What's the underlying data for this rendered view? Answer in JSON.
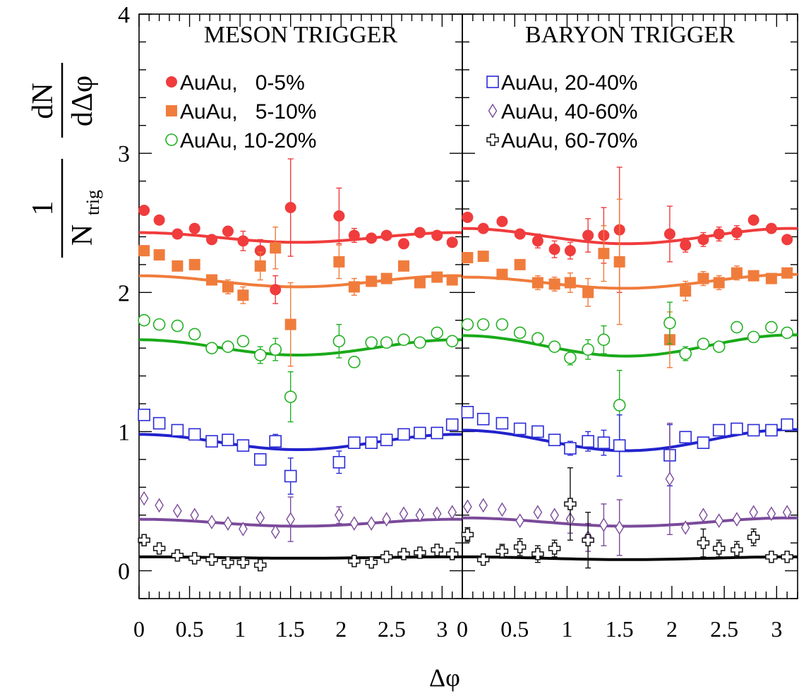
{
  "chart_data": {
    "type": "scatter",
    "xlabel": "Δφ",
    "ylabel_num": "dN",
    "ylabel_den": "dΔφ",
    "ylabel_prefix": "1",
    "ylabel_ntrig": "N",
    "ylabel_ntrig_sub": "trig",
    "xlim": [
      0,
      3.2
    ],
    "ylim": [
      -0.2,
      4
    ],
    "xticks": [
      "0",
      "0.5",
      "1",
      "1.5",
      "2",
      "2.5",
      "3"
    ],
    "yticks": [
      "0",
      "1",
      "2",
      "3",
      "4"
    ],
    "panels": [
      {
        "title": "MESON TRIGGER",
        "series": [
          {
            "name": "AuAu,   0-5%",
            "marker": "filled-circle",
            "color": "#f03c3c",
            "x": [
              0.05,
              0.2,
              0.38,
              0.55,
              0.72,
              0.88,
              1.03,
              1.2,
              1.35,
              1.5,
              1.98,
              2.13,
              2.3,
              2.45,
              2.62,
              2.78,
              2.95,
              3.1
            ],
            "y": [
              2.59,
              2.52,
              2.42,
              2.46,
              2.38,
              2.44,
              2.37,
              2.3,
              2.02,
              2.61,
              2.55,
              2.41,
              2.39,
              2.41,
              2.35,
              2.43,
              2.41,
              2.36
            ],
            "err": [
              0,
              0,
              0,
              0,
              0,
              0,
              0.07,
              0.08,
              0.1,
              0.35,
              0.2,
              0.05,
              0,
              0,
              0,
              0,
              0,
              0
            ],
            "fit": [
              2.43,
              2.36,
              2.39,
              2.43
            ]
          },
          {
            "name": "AuAu,   5-10%",
            "marker": "filled-square",
            "color": "#f07c3c",
            "x": [
              0.05,
              0.2,
              0.38,
              0.55,
              0.72,
              0.88,
              1.03,
              1.2,
              1.35,
              1.5,
              1.98,
              2.13,
              2.3,
              2.45,
              2.62,
              2.78,
              2.95,
              3.1
            ],
            "y": [
              2.3,
              2.27,
              2.19,
              2.2,
              2.09,
              2.04,
              1.98,
              2.19,
              2.32,
              1.77,
              2.22,
              2.04,
              2.08,
              2.1,
              2.19,
              2.07,
              2.11,
              2.09
            ],
            "err": [
              0,
              0,
              0,
              0,
              0,
              0.05,
              0.06,
              0.1,
              0.15,
              0.3,
              0.12,
              0.06,
              0,
              0,
              0,
              0,
              0,
              0
            ],
            "fit": [
              2.12,
              2.04,
              2.07,
              2.12
            ]
          },
          {
            "name": "AuAu, 10-20%",
            "marker": "open-circle",
            "color": "#22b022",
            "x": [
              0.05,
              0.2,
              0.38,
              0.55,
              0.72,
              0.88,
              1.03,
              1.2,
              1.35,
              1.5,
              1.98,
              2.13,
              2.3,
              2.45,
              2.62,
              2.78,
              2.95,
              3.1
            ],
            "y": [
              1.8,
              1.77,
              1.76,
              1.7,
              1.6,
              1.61,
              1.65,
              1.55,
              1.59,
              1.25,
              1.65,
              1.5,
              1.64,
              1.64,
              1.66,
              1.64,
              1.71,
              1.65
            ],
            "err": [
              0,
              0,
              0,
              0,
              0,
              0,
              0,
              0.06,
              0.08,
              0.18,
              0.12,
              0,
              0,
              0,
              0,
              0,
              0,
              0
            ],
            "fit": [
              1.66,
              1.55,
              1.58,
              1.66
            ]
          }
        ]
      },
      {
        "title": "BARYON TRIGGER",
        "series": [
          {
            "name": "AuAu, 20-40%",
            "marker": "open-square",
            "color": "#2a2ad8",
            "x": [
              0.05,
              0.2,
              0.38,
              0.55,
              0.72,
              0.88,
              1.03,
              1.2,
              1.35,
              1.5,
              1.98,
              2.13,
              2.3,
              2.45,
              2.62,
              2.78,
              2.95,
              3.1
            ],
            "y": [
              1.12,
              1.06,
              1.01,
              0.98,
              0.93,
              0.94,
              0.9,
              0.8,
              0.93,
              0.68,
              0.78,
              0.92,
              0.92,
              0.94,
              0.98,
              0.99,
              0.99,
              1.05
            ],
            "err": [
              0,
              0,
              0,
              0,
              0,
              0,
              0,
              0,
              0.05,
              0.13,
              0.08,
              0,
              0,
              0,
              0,
              0,
              0,
              0
            ],
            "fit": [
              0.98,
              0.87,
              0.9,
              0.98
            ]
          },
          {
            "name": "AuAu, 40-60%",
            "marker": "open-diamond",
            "color": "#7a4a9a",
            "x": [
              0.05,
              0.2,
              0.38,
              0.55,
              0.72,
              0.88,
              1.03,
              1.2,
              1.35,
              1.5,
              1.98,
              2.13,
              2.3,
              2.45,
              2.62,
              2.78,
              2.95,
              3.1
            ],
            "y": [
              0.52,
              0.47,
              0.43,
              0.4,
              0.35,
              0.34,
              0.3,
              0.38,
              0.28,
              0.37,
              0.4,
              0.34,
              0.34,
              0.37,
              0.41,
              0.4,
              0.41,
              0.42
            ],
            "err": [
              0,
              0,
              0,
              0,
              0,
              0,
              0,
              0,
              0,
              0.16,
              0.06,
              0,
              0,
              0,
              0,
              0,
              0,
              0
            ],
            "fit": [
              0.37,
              0.32,
              0.34,
              0.37
            ]
          },
          {
            "name": "AuAu, 60-70%",
            "marker": "open-cross",
            "color": "#111111",
            "x": [
              0.05,
              0.2,
              0.38,
              0.55,
              0.72,
              0.88,
              1.03,
              1.2,
              2.13,
              2.3,
              2.45,
              2.62,
              2.78,
              2.95,
              3.1
            ],
            "y": [
              0.22,
              0.16,
              0.11,
              0.09,
              0.08,
              0.06,
              0.06,
              0.04,
              0.07,
              0.06,
              0.1,
              0.12,
              0.13,
              0.15,
              0.12
            ],
            "err": [
              0,
              0,
              0,
              0,
              0,
              0,
              0,
              0,
              0,
              0,
              0,
              0,
              0,
              0,
              0
            ],
            "fit": [
              0.1,
              0.09,
              0.09,
              0.1
            ]
          }
        ]
      }
    ],
    "panel2_series": [
      {
        "color": "#f03c3c",
        "marker": "filled-circle",
        "x": [
          0.05,
          0.2,
          0.38,
          0.55,
          0.72,
          0.88,
          1.03,
          1.2,
          1.35,
          1.5,
          1.98,
          2.13,
          2.3,
          2.45,
          2.62,
          2.78,
          2.95,
          3.1
        ],
        "y": [
          2.54,
          2.46,
          2.51,
          2.42,
          2.37,
          2.31,
          2.3,
          2.41,
          2.41,
          2.45,
          2.42,
          2.34,
          2.38,
          2.42,
          2.43,
          2.52,
          2.46,
          2.38
        ],
        "err": [
          0,
          0,
          0,
          0,
          0.05,
          0.06,
          0.06,
          0.12,
          0.2,
          0.45,
          0.2,
          0.05,
          0.05,
          0.05,
          0.05,
          0,
          0,
          0
        ],
        "fit": [
          2.46,
          2.35,
          2.38,
          2.46
        ]
      },
      {
        "color": "#f07c3c",
        "marker": "filled-square",
        "x": [
          0.05,
          0.2,
          0.38,
          0.55,
          0.72,
          0.88,
          1.03,
          1.2,
          1.35,
          1.5,
          1.98,
          2.13,
          2.3,
          2.45,
          2.62,
          2.78,
          2.95,
          3.1
        ],
        "y": [
          2.25,
          2.26,
          2.13,
          2.2,
          2.07,
          2.06,
          2.07,
          2.0,
          2.28,
          2.22,
          1.66,
          2.01,
          2.1,
          2.07,
          2.14,
          2.12,
          2.1,
          2.14
        ],
        "err": [
          0,
          0,
          0,
          0,
          0.05,
          0.05,
          0.07,
          0.1,
          0.2,
          0.45,
          0.2,
          0.07,
          0.05,
          0.05,
          0.05,
          0,
          0,
          0
        ],
        "fit": [
          2.11,
          2.02,
          2.05,
          2.15
        ]
      },
      {
        "color": "#22b022",
        "marker": "open-circle",
        "x": [
          0.05,
          0.2,
          0.38,
          0.55,
          0.72,
          0.88,
          1.03,
          1.2,
          1.35,
          1.5,
          1.98,
          2.13,
          2.3,
          2.45,
          2.62,
          2.78,
          2.95,
          3.1
        ],
        "y": [
          1.77,
          1.77,
          1.77,
          1.71,
          1.67,
          1.61,
          1.53,
          1.59,
          1.66,
          1.19,
          1.78,
          1.56,
          1.63,
          1.61,
          1.75,
          1.68,
          1.75,
          1.71
        ],
        "err": [
          0,
          0,
          0,
          0,
          0,
          0,
          0.05,
          0.07,
          0.1,
          0.25,
          0.15,
          0.05,
          0,
          0,
          0,
          0,
          0,
          0
        ],
        "fit": [
          1.69,
          1.54,
          1.57,
          1.7
        ]
      },
      {
        "color": "#2a2ad8",
        "marker": "open-square",
        "x": [
          0.05,
          0.2,
          0.38,
          0.55,
          0.72,
          0.88,
          1.03,
          1.2,
          1.35,
          1.5,
          1.98,
          2.13,
          2.3,
          2.45,
          2.62,
          2.78,
          2.95,
          3.1
        ],
        "y": [
          1.14,
          1.09,
          1.06,
          1.02,
          1.0,
          0.94,
          0.88,
          0.93,
          0.92,
          0.9,
          0.83,
          0.96,
          0.92,
          1.01,
          1.02,
          1.01,
          1.01,
          1.05
        ],
        "err": [
          0,
          0,
          0,
          0,
          0,
          0,
          0.05,
          0.07,
          0.09,
          0.22,
          0.22,
          0,
          0,
          0,
          0,
          0,
          0,
          0
        ],
        "fit": [
          1.01,
          0.86,
          0.89,
          1.02
        ]
      },
      {
        "color": "#7a4a9a",
        "marker": "open-diamond",
        "x": [
          0.05,
          0.2,
          0.38,
          0.55,
          0.72,
          0.88,
          1.03,
          1.2,
          1.35,
          1.5,
          1.98,
          2.13,
          2.3,
          2.45,
          2.62,
          2.78,
          2.95,
          3.1
        ],
        "y": [
          0.46,
          0.47,
          0.44,
          0.36,
          0.42,
          0.4,
          0.37,
          0.24,
          0.33,
          0.31,
          0.66,
          0.31,
          0.4,
          0.36,
          0.37,
          0.42,
          0.41,
          0.42
        ],
        "err": [
          0,
          0,
          0,
          0,
          0,
          0,
          0.1,
          0.1,
          0.15,
          0.2,
          0.4,
          0,
          0,
          0,
          0,
          0,
          0,
          0
        ],
        "fit": [
          0.38,
          0.32,
          0.34,
          0.38
        ]
      },
      {
        "color": "#111111",
        "marker": "open-cross",
        "x": [
          0.05,
          0.2,
          0.38,
          0.55,
          0.72,
          0.88,
          1.03,
          1.2,
          2.3,
          2.45,
          2.62,
          2.78,
          2.95,
          3.1
        ],
        "y": [
          0.26,
          0.08,
          0.14,
          0.17,
          0.12,
          0.16,
          0.48,
          0.22,
          0.2,
          0.16,
          0.15,
          0.24,
          0.1,
          0.1
        ],
        "err": [
          0.05,
          0,
          0.05,
          0.06,
          0.06,
          0.06,
          0.26,
          0.2,
          0.1,
          0.06,
          0.06,
          0.06,
          0,
          0
        ],
        "fit": [
          0.1,
          0.08,
          0.09,
          0.1
        ]
      }
    ]
  }
}
